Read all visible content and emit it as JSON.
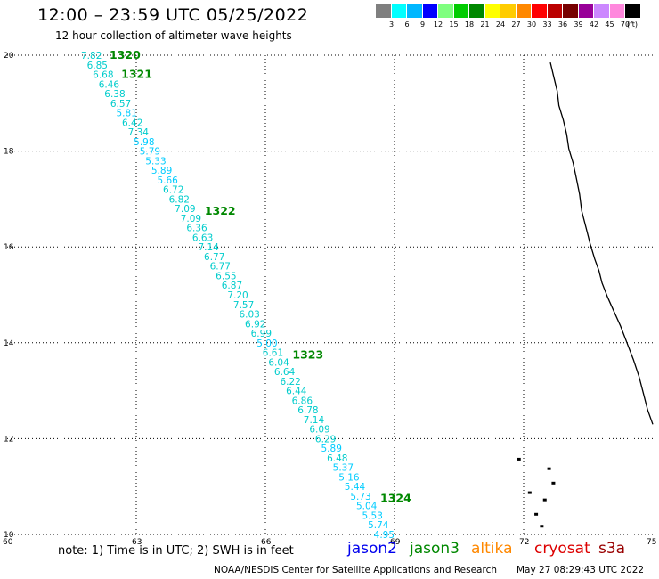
{
  "header": {
    "title": "12:00 – 23:59 UTC 05/25/2022",
    "subtitle": "12 hour collection of altimeter wave heights"
  },
  "colorbar": {
    "colors": [
      "#7f7f7f",
      "#00ffff",
      "#00b7ff",
      "#0000ff",
      "#7fff7f",
      "#00cc00",
      "#008800",
      "#ffff00",
      "#ffcc00",
      "#ff8800",
      "#ff0000",
      "#bb0000",
      "#770000",
      "#990099",
      "#cc88ff",
      "#ff88dd",
      "#000000"
    ],
    "labels": [
      "3",
      "6",
      "9",
      "12",
      "15",
      "18",
      "21",
      "24",
      "27",
      "30",
      "33",
      "36",
      "39",
      "42",
      "45",
      "70",
      "(ft)"
    ]
  },
  "chart_data": {
    "type": "map",
    "x_axis": {
      "range": [
        60,
        75
      ],
      "ticks": [
        "60",
        "63",
        "66",
        "69",
        "72",
        "75"
      ]
    },
    "y_axis": {
      "range": [
        10,
        20
      ],
      "ticks": [
        "10",
        "12",
        "14",
        "16",
        "18",
        "20"
      ]
    },
    "grid": true,
    "track": {
      "satellite": "jason3",
      "start": {
        "lon": 61.8,
        "lat": 20.0
      },
      "end": {
        "lon": 68.6,
        "lat": 10.0
      },
      "swh_ft": [
        7.82,
        6.85,
        6.68,
        6.46,
        6.38,
        6.57,
        5.81,
        6.42,
        7.34,
        5.98,
        5.79,
        5.33,
        5.89,
        5.66,
        6.72,
        6.82,
        7.09,
        7.09,
        6.36,
        6.63,
        7.14,
        6.77,
        6.77,
        6.55,
        6.87,
        7.2,
        7.57,
        6.03,
        6.92,
        6.99,
        5.0,
        6.61,
        6.04,
        6.64,
        6.22,
        6.44,
        6.86,
        6.78,
        7.14,
        6.09,
        6.29,
        5.89,
        6.48,
        5.37,
        5.16,
        5.44,
        5.73,
        5.04,
        5.53,
        5.74,
        4.95
      ],
      "passes": [
        {
          "label": "1320",
          "lat": 20.0
        },
        {
          "label": "1321",
          "lat": 19.6
        },
        {
          "label": "1322",
          "lat": 16.75
        },
        {
          "label": "1323",
          "lat": 13.75
        },
        {
          "label": "1324",
          "lat": 10.75
        }
      ]
    }
  },
  "footer": {
    "note": "note:  1) Time is in UTC;  2) SWH is in feet",
    "legend": [
      {
        "name": "jason2",
        "color": "#0000ee"
      },
      {
        "name": "jason3",
        "color": "#008800"
      },
      {
        "name": "altika",
        "color": "#ff8800"
      },
      {
        "name": "cryosat",
        "color": "#dd0000"
      },
      {
        "name": "s3a",
        "color": "#990000"
      }
    ],
    "credit": "NOAA/NESDIS Center for Satellite Applications and Research",
    "generated": "May 27 08:29:43 UTC 2022"
  }
}
